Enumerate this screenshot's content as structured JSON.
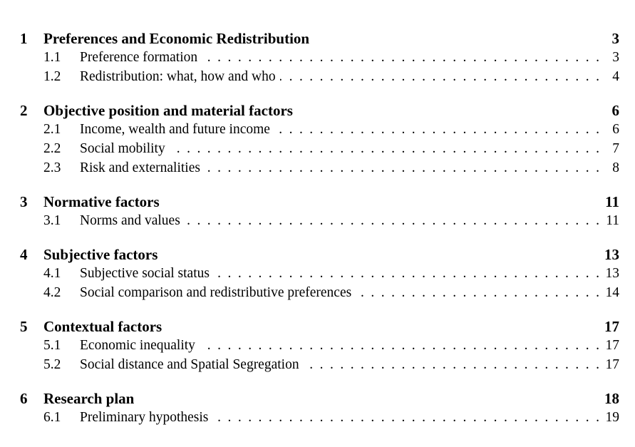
{
  "toc": [
    {
      "number": "1",
      "title": "Preferences and Economic Redistribution",
      "page": "3",
      "sections": [
        {
          "number": "1.1",
          "title": "Preference formation",
          "page": "3"
        },
        {
          "number": "1.2",
          "title": "Redistribution: what, how and who",
          "page": "4"
        }
      ]
    },
    {
      "number": "2",
      "title": "Objective position and material factors",
      "page": "6",
      "sections": [
        {
          "number": "2.1",
          "title": "Income, wealth and future income",
          "page": "6"
        },
        {
          "number": "2.2",
          "title": "Social mobility",
          "page": "7"
        },
        {
          "number": "2.3",
          "title": "Risk and externalities",
          "page": "8"
        }
      ]
    },
    {
      "number": "3",
      "title": "Normative factors",
      "page": "11",
      "sections": [
        {
          "number": "3.1",
          "title": "Norms and values",
          "page": "11"
        }
      ]
    },
    {
      "number": "4",
      "title": "Subjective factors",
      "page": "13",
      "sections": [
        {
          "number": "4.1",
          "title": "Subjective social status",
          "page": "13"
        },
        {
          "number": "4.2",
          "title": "Social comparison and redistributive preferences",
          "page": "14"
        }
      ]
    },
    {
      "number": "5",
      "title": "Contextual factors",
      "page": "17",
      "sections": [
        {
          "number": "5.1",
          "title": "Economic inequality",
          "page": "17"
        },
        {
          "number": "5.2",
          "title": "Social distance and Spatial Segregation",
          "page": "17"
        }
      ]
    },
    {
      "number": "6",
      "title": "Research plan",
      "page": "18",
      "sections": [
        {
          "number": "6.1",
          "title": "Preliminary hypothesis",
          "page": "19"
        }
      ]
    }
  ]
}
